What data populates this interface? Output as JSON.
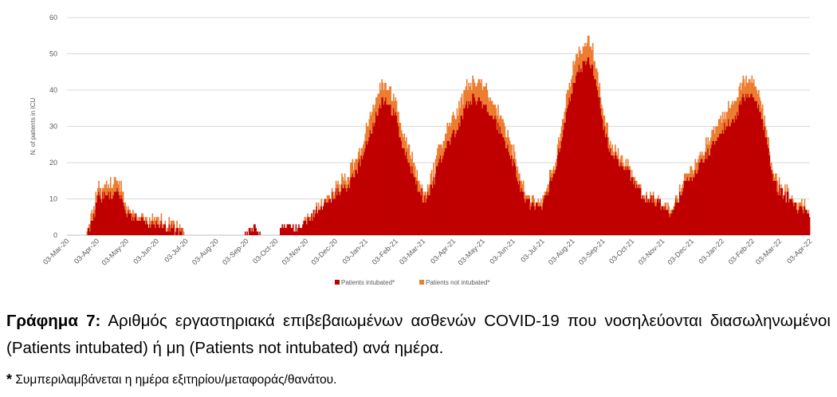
{
  "chart_data": {
    "type": "bar",
    "stacked": true,
    "ylabel": "N. of patients in ICU",
    "ylim": [
      0,
      60
    ],
    "yticks": [
      0,
      10,
      20,
      30,
      40,
      50,
      60
    ],
    "grid": true,
    "legend_position": "bottom-center",
    "x_start": "2020-03-03",
    "x_end": "2022-04-03",
    "xtick_labels": [
      "03-Mar-20",
      "03-Apr-20",
      "03-May-20",
      "03-Jun-20",
      "03-Jul-20",
      "03-Aug-20",
      "03-Sep-20",
      "03-Oct-20",
      "03-Nov-20",
      "03-Dec-20",
      "03-Jan-21",
      "03-Feb-21",
      "03-Mar-21",
      "03-Apr-21",
      "03-May-21",
      "03-Jun-21",
      "03-Jul-21",
      "03-Aug-21",
      "03-Sep-21",
      "03-Oct-21",
      "03-Nov-21",
      "03-Dec-21",
      "03-Jan-22",
      "03-Feb-22",
      "03-Mar-22",
      "03-Apr-22"
    ],
    "series": [
      {
        "name": "Patients intubated*",
        "color": "#C00000",
        "points": [
          [
            "2020-03-03",
            0
          ],
          [
            "2020-03-22",
            0
          ],
          [
            "2020-03-25",
            1
          ],
          [
            "2020-03-29",
            4
          ],
          [
            "2020-04-03",
            10
          ],
          [
            "2020-04-08",
            11
          ],
          [
            "2020-04-13",
            12
          ],
          [
            "2020-04-18",
            11
          ],
          [
            "2020-04-23",
            12
          ],
          [
            "2020-04-28",
            10
          ],
          [
            "2020-05-03",
            6
          ],
          [
            "2020-05-08",
            5
          ],
          [
            "2020-05-13",
            5
          ],
          [
            "2020-05-18",
            4
          ],
          [
            "2020-05-23",
            3
          ],
          [
            "2020-05-28",
            3
          ],
          [
            "2020-06-03",
            3
          ],
          [
            "2020-06-08",
            3
          ],
          [
            "2020-06-13",
            2
          ],
          [
            "2020-06-18",
            2
          ],
          [
            "2020-06-23",
            1
          ],
          [
            "2020-06-28",
            1
          ],
          [
            "2020-07-02",
            0
          ],
          [
            "2020-08-31",
            0
          ],
          [
            "2020-09-01",
            1
          ],
          [
            "2020-09-08",
            1
          ],
          [
            "2020-09-10",
            2
          ],
          [
            "2020-09-13",
            1
          ],
          [
            "2020-09-18",
            0
          ],
          [
            "2020-10-06",
            0
          ],
          [
            "2020-10-07",
            2
          ],
          [
            "2020-10-14",
            3
          ],
          [
            "2020-10-20",
            2
          ],
          [
            "2020-10-28",
            2
          ],
          [
            "2020-11-03",
            4
          ],
          [
            "2020-11-08",
            5
          ],
          [
            "2020-11-13",
            7
          ],
          [
            "2020-11-18",
            8
          ],
          [
            "2020-11-23",
            9
          ],
          [
            "2020-11-28",
            10
          ],
          [
            "2020-12-03",
            12
          ],
          [
            "2020-12-08",
            13
          ],
          [
            "2020-12-13",
            13
          ],
          [
            "2020-12-18",
            15
          ],
          [
            "2020-12-23",
            17
          ],
          [
            "2020-12-28",
            20
          ],
          [
            "2021-01-03",
            25
          ],
          [
            "2021-01-08",
            29
          ],
          [
            "2021-01-13",
            33
          ],
          [
            "2021-01-18",
            36
          ],
          [
            "2021-01-21",
            37
          ],
          [
            "2021-01-26",
            36
          ],
          [
            "2021-01-31",
            34
          ],
          [
            "2021-02-03",
            32
          ],
          [
            "2021-02-08",
            25
          ],
          [
            "2021-02-13",
            22
          ],
          [
            "2021-02-18",
            18
          ],
          [
            "2021-02-23",
            15
          ],
          [
            "2021-02-28",
            12
          ],
          [
            "2021-03-03",
            10
          ],
          [
            "2021-03-08",
            11
          ],
          [
            "2021-03-13",
            15
          ],
          [
            "2021-03-18",
            19
          ],
          [
            "2021-03-23",
            23
          ],
          [
            "2021-03-28",
            25
          ],
          [
            "2021-04-03",
            28
          ],
          [
            "2021-04-08",
            30
          ],
          [
            "2021-04-13",
            34
          ],
          [
            "2021-04-18",
            37
          ],
          [
            "2021-04-23",
            38
          ],
          [
            "2021-04-28",
            37
          ],
          [
            "2021-05-03",
            36
          ],
          [
            "2021-05-08",
            34
          ],
          [
            "2021-05-13",
            33
          ],
          [
            "2021-05-18",
            30
          ],
          [
            "2021-05-23",
            27
          ],
          [
            "2021-05-28",
            24
          ],
          [
            "2021-06-03",
            20
          ],
          [
            "2021-06-08",
            15
          ],
          [
            "2021-06-13",
            11
          ],
          [
            "2021-06-18",
            9
          ],
          [
            "2021-06-23",
            8
          ],
          [
            "2021-06-28",
            8
          ],
          [
            "2021-07-03",
            9
          ],
          [
            "2021-07-08",
            12
          ],
          [
            "2021-07-13",
            16
          ],
          [
            "2021-07-18",
            21
          ],
          [
            "2021-07-23",
            28
          ],
          [
            "2021-07-28",
            35
          ],
          [
            "2021-08-03",
            41
          ],
          [
            "2021-08-08",
            45
          ],
          [
            "2021-08-13",
            47
          ],
          [
            "2021-08-18",
            48
          ],
          [
            "2021-08-23",
            46
          ],
          [
            "2021-08-28",
            40
          ],
          [
            "2021-09-03",
            30
          ],
          [
            "2021-09-08",
            25
          ],
          [
            "2021-09-13",
            22
          ],
          [
            "2021-09-18",
            20
          ],
          [
            "2021-09-23",
            19
          ],
          [
            "2021-09-28",
            18
          ],
          [
            "2021-10-03",
            15
          ],
          [
            "2021-10-08",
            13
          ],
          [
            "2021-10-13",
            11
          ],
          [
            "2021-10-18",
            10
          ],
          [
            "2021-10-23",
            10
          ],
          [
            "2021-10-28",
            9
          ],
          [
            "2021-11-03",
            8
          ],
          [
            "2021-11-08",
            6
          ],
          [
            "2021-11-13",
            7
          ],
          [
            "2021-11-18",
            10
          ],
          [
            "2021-11-23",
            13
          ],
          [
            "2021-11-28",
            15
          ],
          [
            "2021-12-03",
            16
          ],
          [
            "2021-12-08",
            18
          ],
          [
            "2021-12-13",
            20
          ],
          [
            "2021-12-18",
            22
          ],
          [
            "2021-12-23",
            25
          ],
          [
            "2021-12-28",
            27
          ],
          [
            "2022-01-03",
            29
          ],
          [
            "2022-01-08",
            30
          ],
          [
            "2022-01-13",
            31
          ],
          [
            "2022-01-18",
            34
          ],
          [
            "2022-01-23",
            38
          ],
          [
            "2022-01-28",
            39
          ],
          [
            "2022-02-03",
            38
          ],
          [
            "2022-02-08",
            36
          ],
          [
            "2022-02-13",
            32
          ],
          [
            "2022-02-18",
            25
          ],
          [
            "2022-02-23",
            17
          ],
          [
            "2022-02-28",
            13
          ],
          [
            "2022-03-03",
            12
          ],
          [
            "2022-03-08",
            11
          ],
          [
            "2022-03-13",
            10
          ],
          [
            "2022-03-18",
            8
          ],
          [
            "2022-03-23",
            7
          ],
          [
            "2022-03-28",
            7
          ],
          [
            "2022-04-02",
            5
          ]
        ]
      },
      {
        "name": "Patients not intubated*",
        "color": "#ED7D31",
        "points": [
          [
            "2020-03-03",
            0
          ],
          [
            "2020-03-22",
            0
          ],
          [
            "2020-03-25",
            1
          ],
          [
            "2020-03-29",
            2
          ],
          [
            "2020-04-03",
            2
          ],
          [
            "2020-04-08",
            2
          ],
          [
            "2020-04-13",
            3
          ],
          [
            "2020-04-18",
            3
          ],
          [
            "2020-04-23",
            3
          ],
          [
            "2020-04-28",
            3
          ],
          [
            "2020-05-03",
            1
          ],
          [
            "2020-05-08",
            1
          ],
          [
            "2020-05-13",
            1
          ],
          [
            "2020-05-18",
            1
          ],
          [
            "2020-05-23",
            1
          ],
          [
            "2020-05-28",
            1
          ],
          [
            "2020-06-03",
            1
          ],
          [
            "2020-06-08",
            1
          ],
          [
            "2020-06-13",
            1
          ],
          [
            "2020-06-18",
            1
          ],
          [
            "2020-06-23",
            1
          ],
          [
            "2020-06-28",
            1
          ],
          [
            "2020-07-02",
            0
          ],
          [
            "2020-08-31",
            0
          ],
          [
            "2020-09-01",
            0
          ],
          [
            "2020-09-08",
            0
          ],
          [
            "2020-09-10",
            0
          ],
          [
            "2020-09-13",
            0
          ],
          [
            "2020-09-18",
            0
          ],
          [
            "2020-10-06",
            0
          ],
          [
            "2020-10-07",
            0
          ],
          [
            "2020-10-14",
            0
          ],
          [
            "2020-10-20",
            0
          ],
          [
            "2020-10-28",
            0
          ],
          [
            "2020-11-03",
            1
          ],
          [
            "2020-11-08",
            1
          ],
          [
            "2020-11-13",
            1
          ],
          [
            "2020-11-18",
            1
          ],
          [
            "2020-11-23",
            1
          ],
          [
            "2020-11-28",
            1
          ],
          [
            "2020-12-03",
            2
          ],
          [
            "2020-12-08",
            2
          ],
          [
            "2020-12-13",
            2
          ],
          [
            "2020-12-18",
            3
          ],
          [
            "2020-12-23",
            3
          ],
          [
            "2020-12-28",
            3
          ],
          [
            "2021-01-03",
            4
          ],
          [
            "2021-01-08",
            5
          ],
          [
            "2021-01-13",
            5
          ],
          [
            "2021-01-18",
            5
          ],
          [
            "2021-01-21",
            5
          ],
          [
            "2021-01-26",
            4
          ],
          [
            "2021-01-31",
            4
          ],
          [
            "2021-02-03",
            4
          ],
          [
            "2021-02-08",
            4
          ],
          [
            "2021-02-13",
            4
          ],
          [
            "2021-02-18",
            4
          ],
          [
            "2021-02-23",
            3
          ],
          [
            "2021-02-28",
            2
          ],
          [
            "2021-03-03",
            2
          ],
          [
            "2021-03-08",
            2
          ],
          [
            "2021-03-13",
            3
          ],
          [
            "2021-03-18",
            4
          ],
          [
            "2021-03-23",
            4
          ],
          [
            "2021-03-28",
            5
          ],
          [
            "2021-04-03",
            5
          ],
          [
            "2021-04-08",
            5
          ],
          [
            "2021-04-13",
            5
          ],
          [
            "2021-04-18",
            5
          ],
          [
            "2021-04-23",
            5
          ],
          [
            "2021-04-28",
            5
          ],
          [
            "2021-05-03",
            5
          ],
          [
            "2021-05-08",
            5
          ],
          [
            "2021-05-13",
            4
          ],
          [
            "2021-05-18",
            4
          ],
          [
            "2021-05-23",
            4
          ],
          [
            "2021-05-28",
            3
          ],
          [
            "2021-06-03",
            3
          ],
          [
            "2021-06-08",
            3
          ],
          [
            "2021-06-13",
            2
          ],
          [
            "2021-06-18",
            2
          ],
          [
            "2021-06-23",
            1
          ],
          [
            "2021-06-28",
            1
          ],
          [
            "2021-07-03",
            1
          ],
          [
            "2021-07-08",
            2
          ],
          [
            "2021-07-13",
            2
          ],
          [
            "2021-07-18",
            3
          ],
          [
            "2021-07-23",
            4
          ],
          [
            "2021-07-28",
            4
          ],
          [
            "2021-08-03",
            5
          ],
          [
            "2021-08-08",
            5
          ],
          [
            "2021-08-13",
            5
          ],
          [
            "2021-08-18",
            5
          ],
          [
            "2021-08-23",
            5
          ],
          [
            "2021-08-28",
            4
          ],
          [
            "2021-09-03",
            3
          ],
          [
            "2021-09-08",
            3
          ],
          [
            "2021-09-13",
            2
          ],
          [
            "2021-09-18",
            2
          ],
          [
            "2021-09-23",
            2
          ],
          [
            "2021-09-28",
            1
          ],
          [
            "2021-10-03",
            1
          ],
          [
            "2021-10-08",
            1
          ],
          [
            "2021-10-13",
            1
          ],
          [
            "2021-10-18",
            1
          ],
          [
            "2021-10-23",
            1
          ],
          [
            "2021-10-28",
            1
          ],
          [
            "2021-11-03",
            1
          ],
          [
            "2021-11-08",
            1
          ],
          [
            "2021-11-13",
            1
          ],
          [
            "2021-11-18",
            1
          ],
          [
            "2021-11-23",
            2
          ],
          [
            "2021-11-28",
            2
          ],
          [
            "2021-12-03",
            2
          ],
          [
            "2021-12-08",
            2
          ],
          [
            "2021-12-13",
            2
          ],
          [
            "2021-12-18",
            3
          ],
          [
            "2021-12-23",
            3
          ],
          [
            "2021-12-28",
            4
          ],
          [
            "2022-01-03",
            4
          ],
          [
            "2022-01-08",
            4
          ],
          [
            "2022-01-13",
            5
          ],
          [
            "2022-01-18",
            5
          ],
          [
            "2022-01-23",
            5
          ],
          [
            "2022-01-28",
            4
          ],
          [
            "2022-02-03",
            4
          ],
          [
            "2022-02-08",
            4
          ],
          [
            "2022-02-13",
            3
          ],
          [
            "2022-02-18",
            2
          ],
          [
            "2022-02-23",
            2
          ],
          [
            "2022-02-28",
            2
          ],
          [
            "2022-03-03",
            1
          ],
          [
            "2022-03-08",
            1
          ],
          [
            "2022-03-13",
            1
          ],
          [
            "2022-03-18",
            1
          ],
          [
            "2022-03-23",
            1
          ],
          [
            "2022-03-28",
            1
          ],
          [
            "2022-04-02",
            0
          ]
        ]
      }
    ]
  },
  "caption": {
    "label": "Γράφημα 7:",
    "text": "Αριθμός εργαστηριακά επιβεβαιωμένων ασθενών COVID-19 που νοσηλεύονται διασωληνωμένοι (Patients intubated) ή μη (Patients not intubated) ανά ημέρα."
  },
  "footnote": {
    "mark": "*",
    "text": "Συμπεριλαμβάνεται η ημέρα εξιτηρίου/μεταφοράς/θανάτου."
  }
}
